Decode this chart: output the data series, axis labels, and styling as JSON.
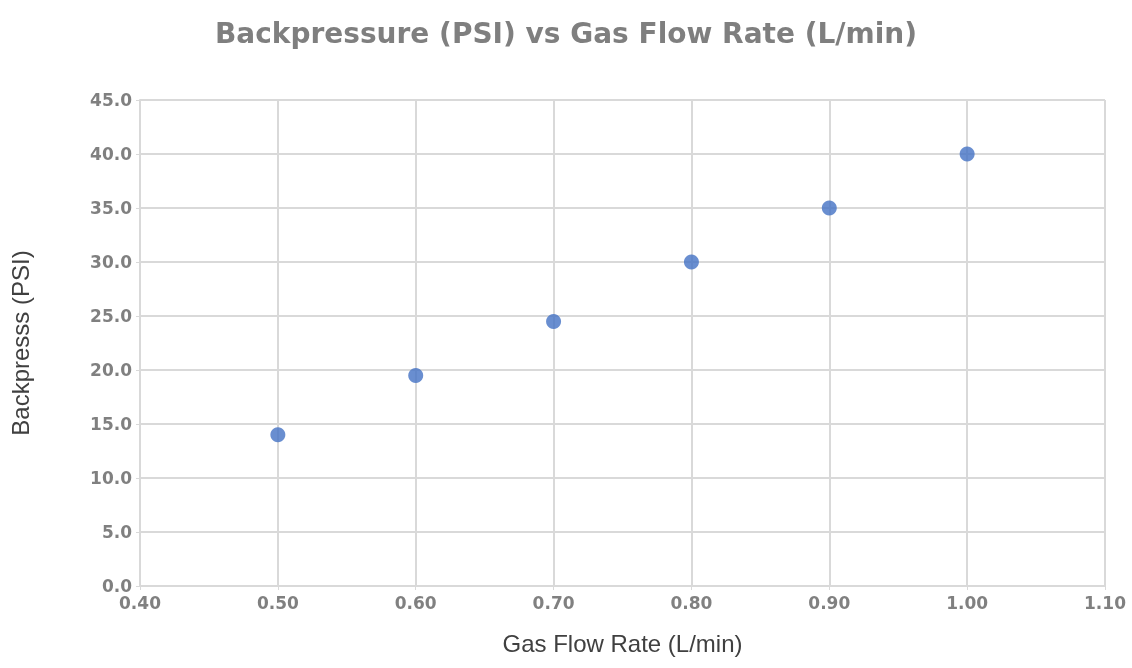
{
  "chart_data": {
    "type": "scatter",
    "title": "Backpressure (PSI) vs Gas Flow Rate (L/min)",
    "xlabel": "Gas Flow Rate (L/min)",
    "ylabel": "Backpresss (PSI)",
    "x": [
      0.5,
      0.6,
      0.7,
      0.8,
      0.9,
      1.0
    ],
    "values": [
      14.0,
      19.5,
      24.5,
      30.0,
      35.0,
      40.0
    ],
    "color": "#4472c4",
    "marker": "circle",
    "xlim": [
      0.4,
      1.1
    ],
    "xticks": [
      {
        "value": 0.4,
        "label": "0.40"
      },
      {
        "value": 0.5,
        "label": "0.50"
      },
      {
        "value": 0.6,
        "label": "0.60"
      },
      {
        "value": 0.7,
        "label": "0.70"
      },
      {
        "value": 0.8,
        "label": "0.80"
      },
      {
        "value": 0.9,
        "label": "0.90"
      },
      {
        "value": 1.0,
        "label": "1.00"
      },
      {
        "value": 1.1,
        "label": "1.10"
      }
    ],
    "ylim": [
      0,
      45
    ],
    "yticks": [
      {
        "value": 0,
        "label": "0.0"
      },
      {
        "value": 5,
        "label": "5.0"
      },
      {
        "value": 10,
        "label": "10.0"
      },
      {
        "value": 15,
        "label": "15.0"
      },
      {
        "value": 20,
        "label": "20.0"
      },
      {
        "value": 25,
        "label": "25.0"
      },
      {
        "value": 30,
        "label": "30.0"
      },
      {
        "value": 35,
        "label": "35.0"
      },
      {
        "value": 40,
        "label": "40.0"
      },
      {
        "value": 45,
        "label": "45.0"
      }
    ],
    "grid": true
  }
}
